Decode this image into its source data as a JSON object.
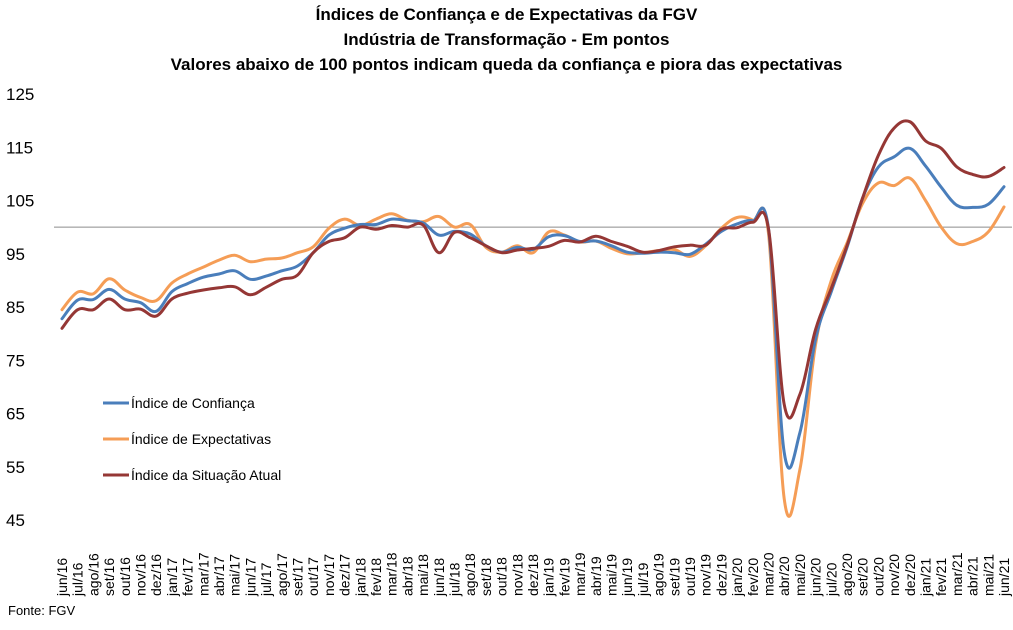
{
  "chart_data": {
    "type": "line",
    "title": "Índices de Confiança e de Expectativas da FGV",
    "subtitle": "Indústria de Transformação  - Em pontos",
    "subtitle2": "Valores abaixo de 100 pontos indicam queda da confiança e piora das expectativas",
    "xlabel": "",
    "ylabel": "",
    "ylim": [
      45,
      125
    ],
    "yticks": [
      45,
      55,
      65,
      75,
      85,
      95,
      105,
      115,
      125
    ],
    "reference_line": 100,
    "grid": false,
    "legend_position": "left-middle",
    "categories": [
      "jun/16",
      "jul/16",
      "ago/16",
      "set/16",
      "out/16",
      "nov/16",
      "dez/16",
      "jan/17",
      "fev/17",
      "mar/17",
      "abr/17",
      "mai/17",
      "jun/17",
      "jul/17",
      "ago/17",
      "set/17",
      "out/17",
      "nov/17",
      "dez/17",
      "jan/18",
      "fev/18",
      "mar/18",
      "abr/18",
      "mai/18",
      "jun/18",
      "jul/18",
      "ago/18",
      "set/18",
      "out/18",
      "nov/18",
      "dez/18",
      "jan/19",
      "fev/19",
      "mar/19",
      "abr/19",
      "mai/19",
      "jun/19",
      "jul/19",
      "ago/19",
      "set/19",
      "out/19",
      "nov/19",
      "dez/19",
      "jan/20",
      "fev/20",
      "mar/20",
      "abr/20",
      "mai/20",
      "jun/20",
      "jul/20",
      "ago/20",
      "set/20",
      "out/20",
      "nov/20",
      "dez/20",
      "jan/21",
      "fev/21",
      "mar/21",
      "abr/21",
      "mai/21",
      "jun/21"
    ],
    "series": [
      {
        "name": "Índice de Confiança",
        "color": "#4a7ebb",
        "values": [
          82.8,
          86.3,
          86.4,
          88.3,
          86.5,
          85.8,
          84.2,
          87.9,
          89.4,
          90.6,
          91.2,
          91.8,
          90.2,
          90.8,
          91.8,
          92.7,
          95.2,
          98.5,
          99.8,
          100.5,
          100.5,
          101.5,
          101.2,
          100.8,
          98.5,
          99.2,
          98.7,
          96.5,
          95.3,
          96.2,
          95.8,
          98.2,
          98.4,
          97.3,
          97.4,
          96.5,
          95.3,
          95.1,
          95.3,
          95.2,
          94.9,
          96.8,
          99.2,
          100.6,
          101.2,
          99.7,
          57.7,
          61.4,
          79.0,
          87.9,
          96.2,
          105.5,
          111.3,
          113.2,
          114.8,
          111.5,
          107.5,
          104.1,
          103.7,
          104.3,
          107.6
        ]
      },
      {
        "name": "Índice de Expectativas",
        "color": "#f59d56",
        "values": [
          84.5,
          87.8,
          87.5,
          90.3,
          88.2,
          86.8,
          86.2,
          89.5,
          91.2,
          92.5,
          93.8,
          94.7,
          93.5,
          94.0,
          94.2,
          95.2,
          96.3,
          99.8,
          101.5,
          100.3,
          101.5,
          102.5,
          101.3,
          101.0,
          102.0,
          100.0,
          100.5,
          96.2,
          95.3,
          96.5,
          95.2,
          99.1,
          98.5,
          97.2,
          97.4,
          96.0,
          95.0,
          95.2,
          95.6,
          95.8,
          94.5,
          96.5,
          99.8,
          101.8,
          101.3,
          98.8,
          49.0,
          54.5,
          78.0,
          90.0,
          97.0,
          104.5,
          108.3,
          107.8,
          109.2,
          105.0,
          100.0,
          96.9,
          97.3,
          99.1,
          103.8
        ]
      },
      {
        "name": "Índice da Situação Atual",
        "color": "#953735",
        "values": [
          81.0,
          84.5,
          84.5,
          86.5,
          84.5,
          84.6,
          83.3,
          86.5,
          87.6,
          88.2,
          88.6,
          88.8,
          87.3,
          88.7,
          90.2,
          91.0,
          95.2,
          97.3,
          98.0,
          100.0,
          99.6,
          100.3,
          100.0,
          100.4,
          95.2,
          99.0,
          98.0,
          96.5,
          95.2,
          95.7,
          96.0,
          96.4,
          97.5,
          97.2,
          98.3,
          97.3,
          96.4,
          95.3,
          95.6,
          96.3,
          96.6,
          96.6,
          99.6,
          99.9,
          100.9,
          99.7,
          66.7,
          68.6,
          80.8,
          88.5,
          96.5,
          105.5,
          113.5,
          118.6,
          119.8,
          116.2,
          114.8,
          111.3,
          109.9,
          109.5,
          111.2
        ]
      }
    ]
  },
  "source": "Fonte: FGV"
}
